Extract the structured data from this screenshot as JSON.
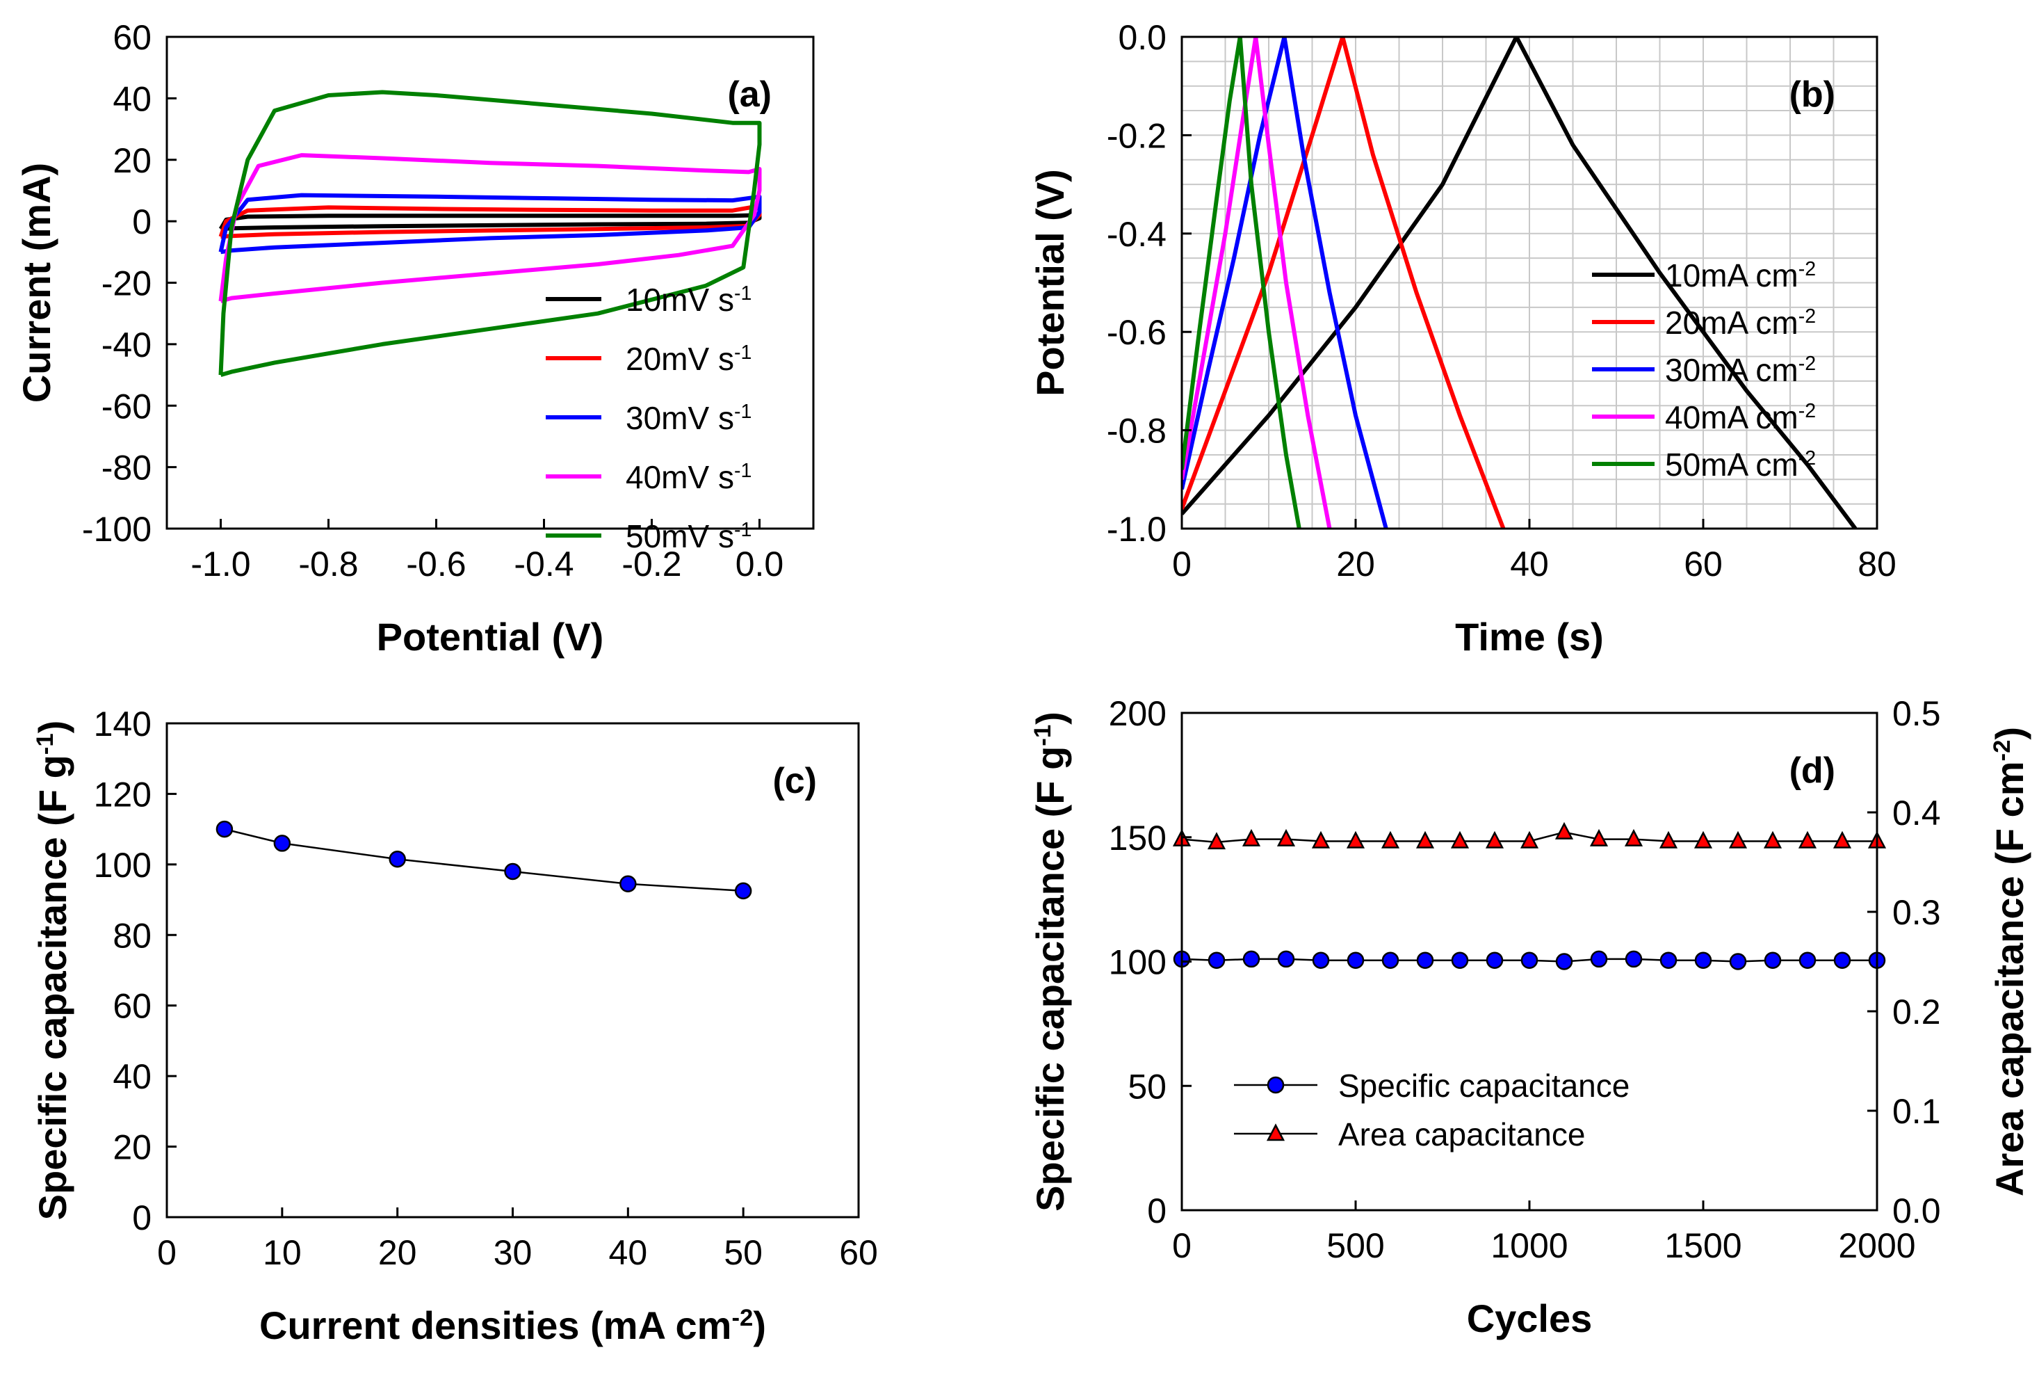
{
  "chart_data": [
    {
      "id": "a",
      "type": "line",
      "panel_label": "(a)",
      "xlabel": "Potential (V)",
      "ylabel": "Current (mA)",
      "xlim": [
        -1.1,
        0.1
      ],
      "ylim": [
        -100,
        60
      ],
      "xticks": [
        -1.0,
        -0.8,
        -0.6,
        -0.4,
        -0.2,
        0.0
      ],
      "xtick_labels": [
        "-1.0",
        "-0.8",
        "-0.6",
        "-0.4",
        "-0.2",
        "0.0"
      ],
      "yticks": [
        -100,
        -80,
        -60,
        -40,
        -20,
        0,
        20,
        40,
        60
      ],
      "ytick_labels": [
        "-100",
        "-80",
        "-60",
        "-40",
        "-20",
        "0",
        "20",
        "40",
        "60"
      ],
      "grid": false,
      "legend_position": "bottom-right",
      "series": [
        {
          "name": "10mV s",
          "sup": "-1",
          "color": "#000000",
          "x": [
            -1.0,
            -0.99,
            -0.95,
            -0.8,
            -0.6,
            -0.4,
            -0.2,
            -0.05,
            0.0,
            0.0,
            -0.02,
            -0.1,
            -0.3,
            -0.5,
            -0.7,
            -0.9,
            -0.98,
            -1.0,
            -1.0
          ],
          "y": [
            -2.5,
            0.5,
            1.5,
            1.8,
            1.8,
            1.8,
            1.8,
            1.8,
            2,
            1,
            -0.5,
            -0.8,
            -1,
            -1.3,
            -1.6,
            -2,
            -2.3,
            -2.5,
            -2.5
          ]
        },
        {
          "name": "20mV s",
          "sup": "-1",
          "color": "#ff0000",
          "x": [
            -1.0,
            -0.99,
            -0.95,
            -0.8,
            -0.6,
            -0.4,
            -0.2,
            -0.05,
            0.0,
            0.0,
            -0.02,
            -0.1,
            -0.3,
            -0.5,
            -0.7,
            -0.9,
            -0.98,
            -1.0,
            -1.0
          ],
          "y": [
            -5,
            0,
            3.5,
            4.5,
            4,
            3.7,
            3.5,
            3.5,
            5,
            2,
            -1.5,
            -2,
            -2.5,
            -3,
            -3.5,
            -4.2,
            -4.8,
            -5,
            -5
          ]
        },
        {
          "name": "30mV s",
          "sup": "-1",
          "color": "#0000ff",
          "x": [
            -1.0,
            -0.99,
            -0.95,
            -0.85,
            -0.6,
            -0.4,
            -0.2,
            -0.05,
            0.0,
            0.0,
            -0.02,
            -0.1,
            -0.3,
            -0.5,
            -0.7,
            -0.9,
            -0.98,
            -1.0,
            -1.0
          ],
          "y": [
            -10,
            -2,
            7,
            8.5,
            8,
            7.5,
            7,
            6.8,
            8,
            3,
            -2,
            -3,
            -4.5,
            -5.5,
            -7,
            -8.5,
            -9.5,
            -10,
            -10
          ]
        },
        {
          "name": "40mV s",
          "sup": "-1",
          "color": "#ff00ff",
          "x": [
            -1.0,
            -0.99,
            -0.97,
            -0.93,
            -0.85,
            -0.7,
            -0.5,
            -0.3,
            -0.1,
            -0.02,
            0.0,
            0.0,
            -0.01,
            -0.05,
            -0.15,
            -0.3,
            -0.5,
            -0.7,
            -0.9,
            -0.98,
            -1.0,
            -1.0
          ],
          "y": [
            -26,
            -12,
            5,
            18,
            21.5,
            20.5,
            19,
            18,
            16.5,
            16,
            17,
            10,
            2,
            -8,
            -11,
            -14,
            -17,
            -20,
            -23.5,
            -25,
            -26,
            -26
          ]
        },
        {
          "name": "50mV s",
          "sup": "-1",
          "color": "#008000",
          "x": [
            -1.0,
            -0.995,
            -0.98,
            -0.95,
            -0.9,
            -0.8,
            -0.7,
            -0.6,
            -0.4,
            -0.2,
            -0.05,
            0.0,
            0.0,
            -0.01,
            -0.03,
            -0.1,
            -0.3,
            -0.5,
            -0.7,
            -0.9,
            -0.98,
            -1.0,
            -1.0
          ],
          "y": [
            -50,
            -30,
            -2,
            20,
            36,
            41,
            42,
            41,
            38,
            35,
            32,
            32,
            25,
            10,
            -15,
            -21,
            -30,
            -35,
            -40,
            -46,
            -49,
            -50,
            -50
          ]
        }
      ]
    },
    {
      "id": "b",
      "type": "line",
      "panel_label": "(b)",
      "xlabel": "Time (s)",
      "ylabel": "Potential (V)",
      "xlim": [
        0,
        80
      ],
      "ylim": [
        -1.0,
        0.0
      ],
      "xticks": [
        0,
        20,
        40,
        60,
        80
      ],
      "xtick_labels": [
        "0",
        "20",
        "40",
        "60",
        "80"
      ],
      "yticks": [
        -1.0,
        -0.8,
        -0.6,
        -0.4,
        -0.2,
        0.0
      ],
      "ytick_labels": [
        "-1.0",
        "-0.8",
        "-0.6",
        "-0.4",
        "-0.2",
        "0.0"
      ],
      "grid": true,
      "legend_position": "right",
      "series": [
        {
          "name": "10mA cm",
          "sup": "-2",
          "color": "#000000",
          "x": [
            0,
            10,
            20,
            30,
            38.5,
            45,
            55,
            65,
            72,
            77.5
          ],
          "y": [
            -0.97,
            -0.77,
            -0.55,
            -0.3,
            0.0,
            -0.22,
            -0.48,
            -0.72,
            -0.87,
            -1.0
          ]
        },
        {
          "name": "20mA cm",
          "sup": "-2",
          "color": "#ff0000",
          "x": [
            0,
            5,
            10,
            15,
            18.5,
            22,
            27,
            32,
            37
          ],
          "y": [
            -0.96,
            -0.72,
            -0.48,
            -0.2,
            0.0,
            -0.24,
            -0.52,
            -0.77,
            -1.0
          ]
        },
        {
          "name": "30mA cm",
          "sup": "-2",
          "color": "#0000ff",
          "x": [
            0,
            3,
            6,
            9,
            11.8,
            14,
            17,
            20,
            23.5
          ],
          "y": [
            -0.92,
            -0.68,
            -0.45,
            -0.2,
            0.0,
            -0.24,
            -0.52,
            -0.77,
            -1.0
          ]
        },
        {
          "name": "40mA cm",
          "sup": "-2",
          "color": "#ff00ff",
          "x": [
            0,
            2.5,
            5,
            7,
            8.5,
            10,
            12,
            14.5,
            17
          ],
          "y": [
            -0.9,
            -0.65,
            -0.4,
            -0.17,
            0.0,
            -0.22,
            -0.5,
            -0.77,
            -1.0
          ]
        },
        {
          "name": "50mA cm",
          "sup": "-2",
          "color": "#008000",
          "x": [
            0,
            2,
            4,
            5.5,
            6.7,
            8,
            10,
            12,
            13.5
          ],
          "y": [
            -0.88,
            -0.6,
            -0.33,
            -0.13,
            0.0,
            -0.3,
            -0.6,
            -0.85,
            -1.0
          ]
        }
      ]
    },
    {
      "id": "c",
      "type": "line",
      "panel_label": "(c)",
      "xlabel": "Current densities (mA cm",
      "xlabel_sup": "-2",
      "xlabel_tail": ")",
      "ylabel": "Specific capacitance (F g",
      "ylabel_sup": "-1",
      "ylabel_tail": ")",
      "xlim": [
        0,
        60
      ],
      "ylim": [
        0,
        140
      ],
      "xticks": [
        0,
        10,
        20,
        30,
        40,
        50,
        60
      ],
      "xtick_labels": [
        "0",
        "10",
        "20",
        "30",
        "40",
        "50",
        "60"
      ],
      "yticks": [
        0,
        20,
        40,
        60,
        80,
        100,
        120,
        140
      ],
      "ytick_labels": [
        "0",
        "20",
        "40",
        "60",
        "80",
        "100",
        "120",
        "140"
      ],
      "grid": false,
      "series": [
        {
          "name": "Specific capacitance",
          "color": "#0000ff",
          "marker": "circle",
          "x": [
            5,
            10,
            20,
            30,
            40,
            50
          ],
          "y": [
            110,
            106,
            101.5,
            98,
            94.5,
            92.5
          ]
        }
      ]
    },
    {
      "id": "d",
      "type": "line",
      "panel_label": "(d)",
      "xlabel": "Cycles",
      "ylabel": "Specific capacitance (F g",
      "ylabel_sup": "-1",
      "ylabel_tail": ")",
      "y2label": "Area capacitance (F cm",
      "y2label_sup": "-2",
      "y2label_tail": ")",
      "xlim": [
        0,
        2000
      ],
      "ylim": [
        0,
        200
      ],
      "y2lim": [
        0.0,
        0.5
      ],
      "xticks": [
        0,
        500,
        1000,
        1500,
        2000
      ],
      "xtick_labels": [
        "0",
        "500",
        "1000",
        "1500",
        "2000"
      ],
      "yticks": [
        0,
        50,
        100,
        150,
        200
      ],
      "ytick_labels": [
        "0",
        "50",
        "100",
        "150",
        "200"
      ],
      "y2ticks": [
        0.0,
        0.1,
        0.2,
        0.3,
        0.4,
        0.5
      ],
      "y2tick_labels": [
        "0.0",
        "0.1",
        "0.2",
        "0.3",
        "0.4",
        "0.5"
      ],
      "grid": false,
      "legend_position": "lower-left",
      "series": [
        {
          "name": "Specific capacitance",
          "color": "#0000ff",
          "marker": "circle",
          "axis": "left",
          "x": [
            0,
            100,
            200,
            300,
            400,
            500,
            600,
            700,
            800,
            900,
            1000,
            1100,
            1200,
            1300,
            1400,
            1500,
            1600,
            1700,
            1800,
            1900,
            2000
          ],
          "y": [
            101,
            100.5,
            101,
            101,
            100.5,
            100.5,
            100.5,
            100.5,
            100.5,
            100.5,
            100.5,
            100,
            101,
            101,
            100.5,
            100.5,
            100,
            100.5,
            100.5,
            100.5,
            100.5
          ]
        },
        {
          "name": "Area capacitance",
          "color": "#ff0000",
          "marker": "triangle",
          "axis": "right",
          "x": [
            0,
            100,
            200,
            300,
            400,
            500,
            600,
            700,
            800,
            900,
            1000,
            1100,
            1200,
            1300,
            1400,
            1500,
            1600,
            1700,
            1800,
            1900,
            2000
          ],
          "y": [
            0.373,
            0.37,
            0.373,
            0.373,
            0.371,
            0.371,
            0.371,
            0.371,
            0.371,
            0.371,
            0.371,
            0.38,
            0.373,
            0.373,
            0.371,
            0.371,
            0.371,
            0.371,
            0.371,
            0.371,
            0.371
          ]
        }
      ]
    }
  ]
}
